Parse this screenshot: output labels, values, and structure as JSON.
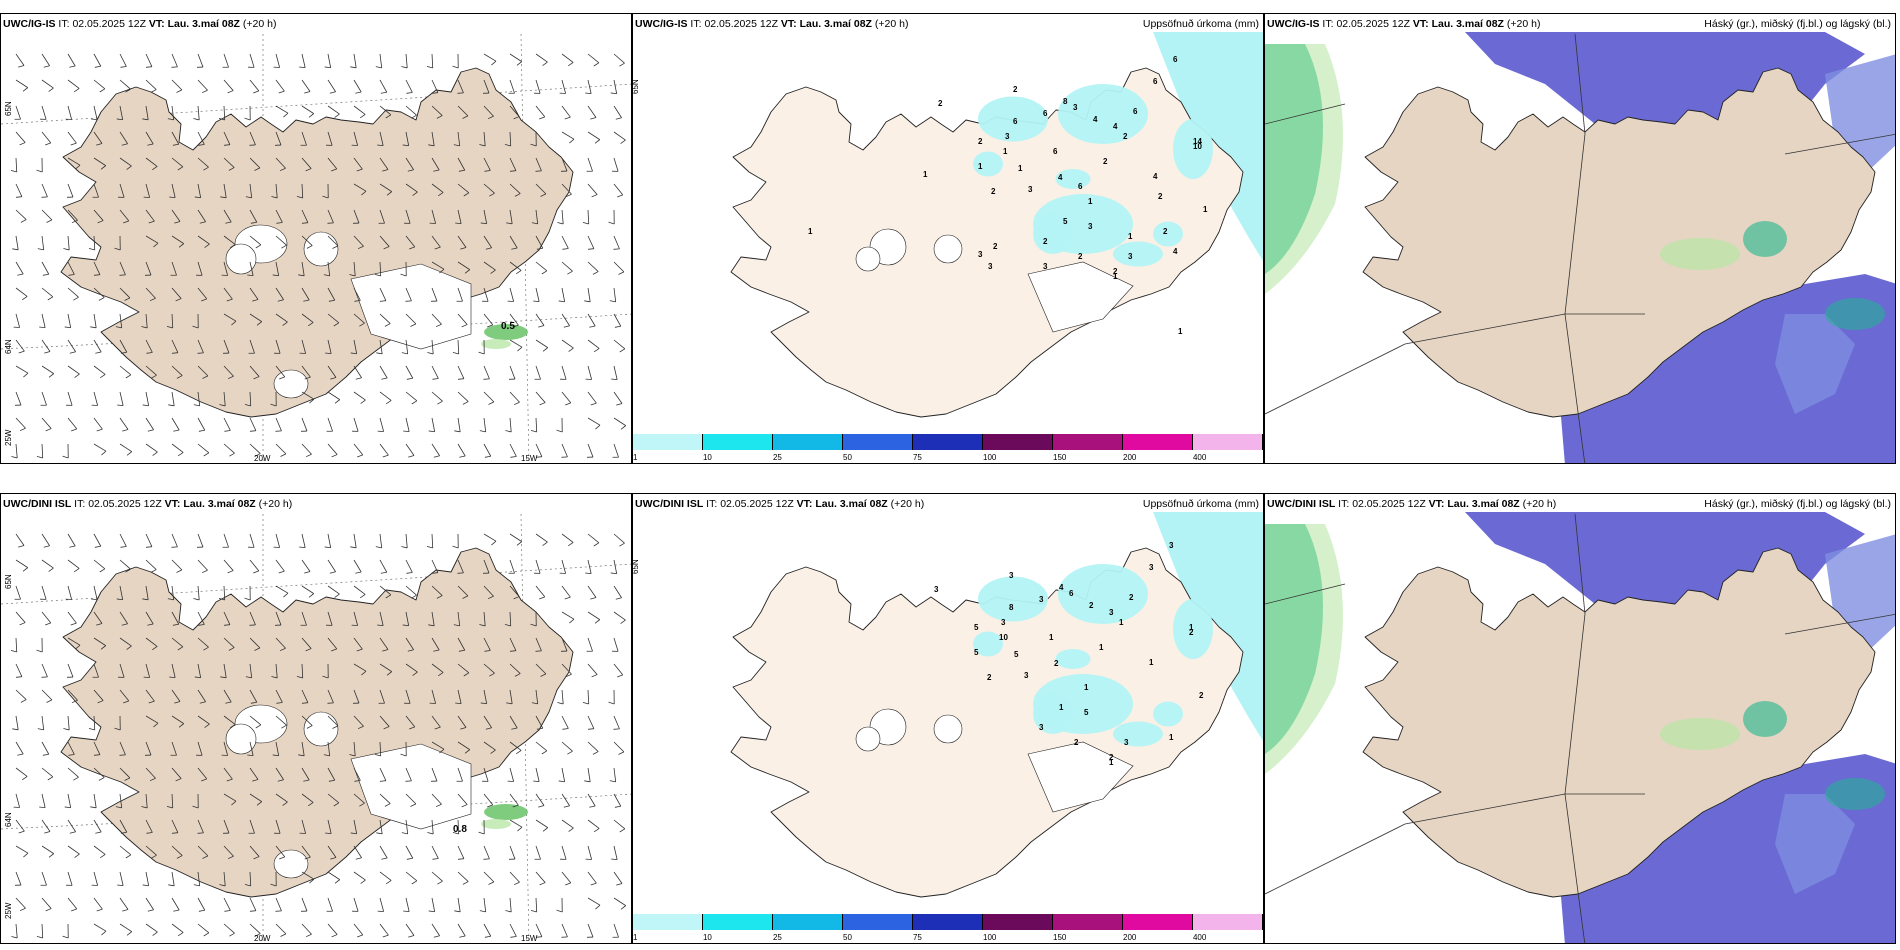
{
  "colors": {
    "land": "#e6d5c3",
    "land_light": "#fbf0e6",
    "precip": "#b3f3f5",
    "cloud_high": "#5b5ad0",
    "cloud_mid": "#7f8fe0",
    "cloud_low": "#1fb78c",
    "green_light": "#b9e6a7"
  },
  "rows": [
    {
      "model": "UWC/IG-IS",
      "it_label": "IT:",
      "it_value": "02.05.2025 12Z",
      "vt_label": "VT:",
      "vt_value": "Lau. 3.maí 08Z",
      "lead": "(+20 h)",
      "wind_value": "0.5",
      "precip_numbers": [
        "2",
        "2",
        "8",
        "6",
        "3",
        "2",
        "6",
        "3",
        "6",
        "6",
        "6",
        "4",
        "2",
        "6",
        "2",
        "4",
        "1",
        "1",
        "1",
        "4",
        "3",
        "2",
        "1",
        "3",
        "5",
        "14",
        "10",
        "2",
        "2",
        "3",
        "2",
        "4",
        "4",
        "1",
        "1",
        "6",
        "2",
        "2",
        "3",
        "3",
        "2",
        "1",
        "3",
        "1",
        "1",
        "1"
      ]
    },
    {
      "model": "UWC/DINI ISL",
      "it_label": "IT:",
      "it_value": "02.05.2025 12Z",
      "vt_label": "VT:",
      "vt_value": "Lau. 3.maí 08Z",
      "lead": "(+20 h)",
      "wind_value": "0.8",
      "precip_numbers": [
        "3",
        "3",
        "4",
        "8",
        "3",
        "5",
        "3",
        "6",
        "2",
        "3",
        "3",
        "2",
        "1",
        "1",
        "1",
        "3",
        "10",
        "5",
        "5",
        "2",
        "3",
        "2",
        "1",
        "5",
        "1",
        "1",
        "2",
        "3",
        "2",
        "3",
        "2",
        "1",
        "1",
        "2",
        "1"
      ]
    }
  ],
  "precip_panel": {
    "title": "Uppsöfnuð úrkoma (mm)",
    "scale_labels": [
      "1",
      "10",
      "25",
      "50",
      "75",
      "100",
      "150",
      "200",
      "400"
    ],
    "scale_colors": [
      "#c0f6f7",
      "#1ee6ee",
      "#12b8e6",
      "#2c63e0",
      "#1d2fb6",
      "#6b0a5b",
      "#a8107c",
      "#e00aa0",
      "#f2b4ea"
    ]
  },
  "cloud_panel": {
    "title": "Háský (gr.), miðský (fj.bl.) og lágský (bl.)"
  },
  "wind_panel": {
    "lat_label_top": "65N",
    "lat_label_bottom": "64N",
    "lon_label_left": "20W",
    "lon_label_right": "15W",
    "lon_label_corner": "25W"
  }
}
